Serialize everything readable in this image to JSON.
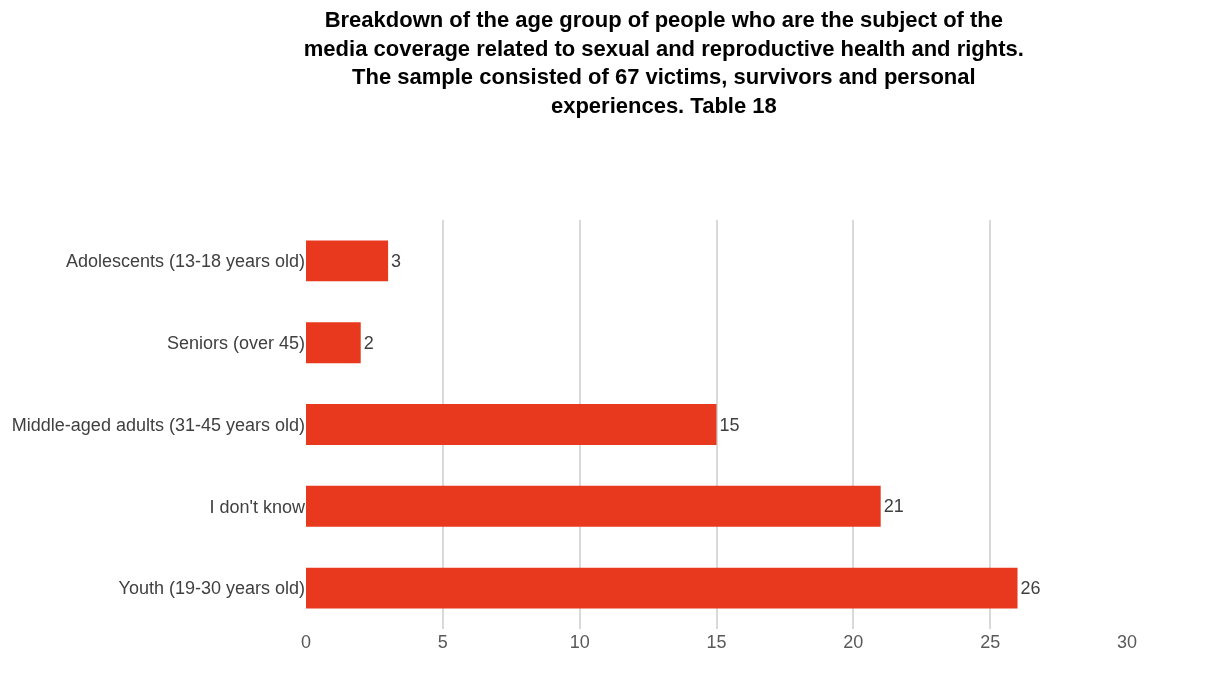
{
  "chart_data": {
    "type": "bar",
    "orientation": "horizontal",
    "title": "Breakdown of the age group of people who are the subject of the\nmedia coverage related to sexual and reproductive health and rights.\nThe sample consisted of 67 victims, survivors and personal\nexperiences. Table 18",
    "categories": [
      "Adolescents (13-18 years old)",
      "Seniors (over 45)",
      "Middle-aged adults (31-45 years old)",
      "I don't know",
      "Youth (19-30 years old)"
    ],
    "values": [
      3,
      2,
      15,
      21,
      26
    ],
    "color": "#e8391e",
    "xlim": [
      0,
      30
    ],
    "xticks": [
      0,
      5,
      10,
      15,
      20,
      25,
      30
    ],
    "grid": "x",
    "data_labels": true
  }
}
